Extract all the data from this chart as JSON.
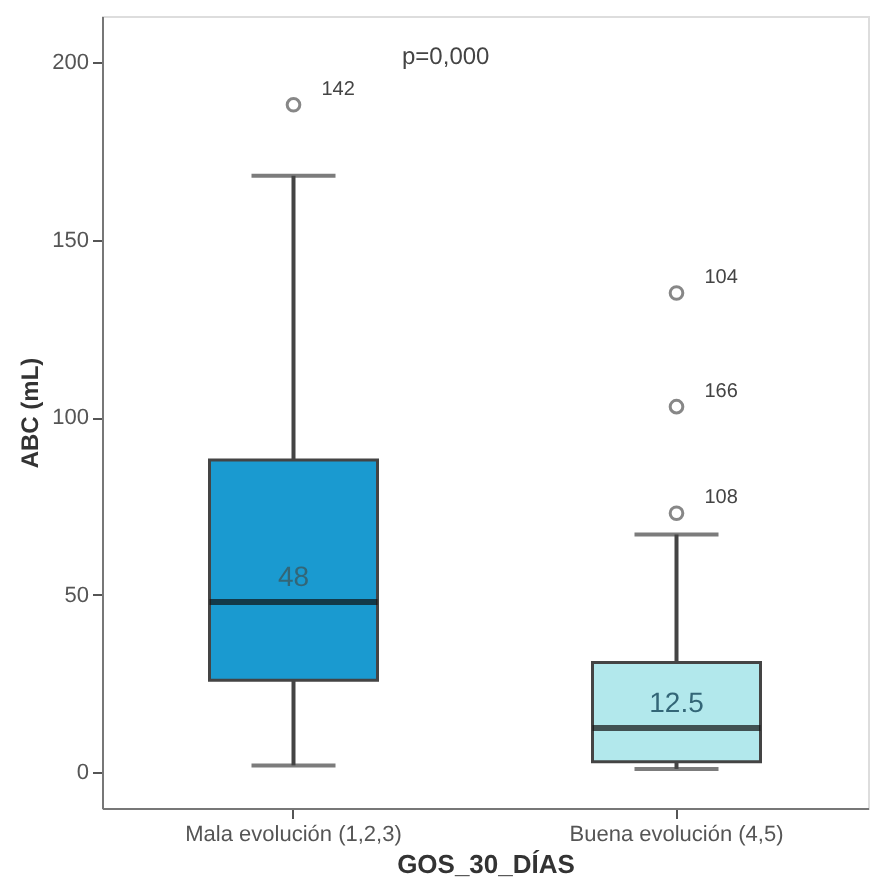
{
  "chart_data": {
    "type": "box",
    "xlabel": "GOS_30_DÍAS",
    "ylabel": "ABC (mL)",
    "categories": [
      "Mala evolución (1,2,3)",
      "Buena evolución (4,5)"
    ],
    "colors": [
      "#1a9ad0",
      "#b2e8ec"
    ],
    "boxes": [
      {
        "low": 2,
        "q1": 26,
        "median": 48,
        "q3": 88,
        "high": 168,
        "outliers": [
          188
        ]
      },
      {
        "low": 1,
        "q1": 3,
        "median": 12.5,
        "q3": 31,
        "high": 67,
        "outliers": [
          73,
          103,
          135
        ]
      }
    ],
    "ylim": [
      -10,
      213
    ],
    "yticks": [
      0,
      50,
      100,
      150,
      200
    ],
    "grid": false,
    "legend": false,
    "annotations": [
      "p=0,000",
      {
        "text": "48",
        "x": "Mala evolución (1,2,3)",
        "y": 48
      },
      {
        "text": "12.5",
        "x": "Buena evolución (4,5)",
        "y": 12.5
      },
      "142",
      "108",
      "166",
      "104"
    ]
  }
}
